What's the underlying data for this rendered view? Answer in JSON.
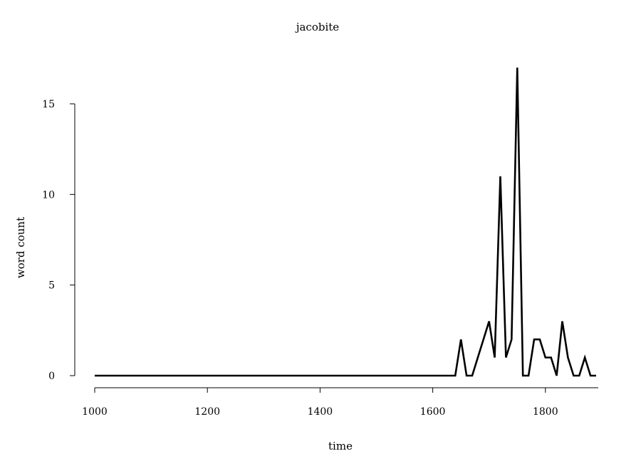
{
  "chart_data": {
    "type": "line",
    "title": "jacobite",
    "xlabel": "time",
    "ylabel": "word count",
    "xlim": [
      1000,
      1890
    ],
    "ylim": [
      0,
      17
    ],
    "x_ticks": [
      1000,
      1200,
      1400,
      1600,
      1800
    ],
    "y_ticks": [
      0,
      5,
      10,
      15
    ],
    "grid": false,
    "series": [
      {
        "color": "#000000",
        "x": [
          1000,
          1640,
          1650,
          1660,
          1670,
          1680,
          1690,
          1700,
          1710,
          1720,
          1730,
          1740,
          1750,
          1760,
          1770,
          1780,
          1790,
          1800,
          1810,
          1820,
          1830,
          1840,
          1850,
          1860,
          1870,
          1880,
          1890
        ],
        "y": [
          0,
          0,
          2,
          0,
          0,
          1,
          2,
          3,
          1,
          11,
          1,
          2,
          17,
          0,
          0,
          2,
          2,
          1,
          1,
          0,
          3,
          1,
          0,
          0,
          1,
          0,
          0
        ]
      }
    ]
  }
}
